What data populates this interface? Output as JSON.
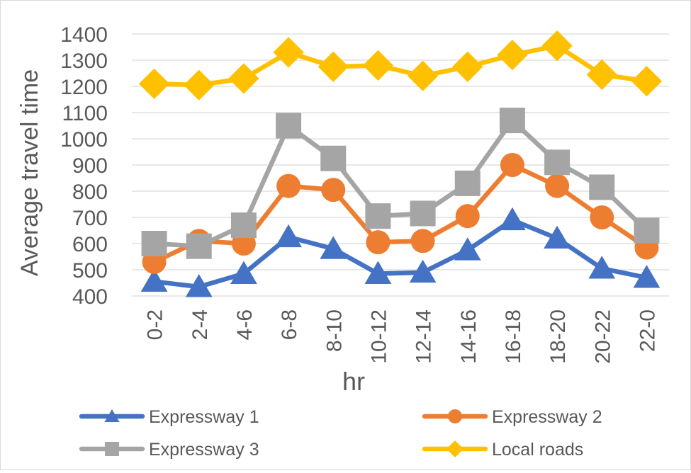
{
  "chart_data": {
    "type": "line",
    "title": "",
    "xlabel": "hr",
    "ylabel": "Average travel time",
    "ylim": [
      400,
      1400
    ],
    "yticks": [
      400,
      500,
      600,
      700,
      800,
      900,
      1000,
      1100,
      1200,
      1300,
      1400
    ],
    "grid": true,
    "legend_position": "bottom",
    "categories": [
      "0-2",
      "2-4",
      "4-6",
      "6-8",
      "8-10",
      "10-12",
      "12-14",
      "14-16",
      "16-18",
      "18-20",
      "20-22",
      "22-0"
    ],
    "series": [
      {
        "name": "Expressway 1",
        "color": "#4472C4",
        "marker": "triangle",
        "values": [
          455,
          435,
          485,
          625,
          580,
          485,
          490,
          575,
          690,
          620,
          505,
          470
        ]
      },
      {
        "name": "Expressway 2",
        "color": "#ED7D31",
        "marker": "circle",
        "values": [
          530,
          610,
          600,
          820,
          805,
          605,
          610,
          705,
          900,
          820,
          700,
          585
        ]
      },
      {
        "name": "Expressway 3",
        "color": "#A5A5A5",
        "marker": "square",
        "values": [
          600,
          590,
          670,
          1050,
          925,
          705,
          715,
          830,
          1070,
          910,
          815,
          650
        ]
      },
      {
        "name": "Local roads",
        "color": "#FFC000",
        "marker": "diamond",
        "values": [
          1210,
          1205,
          1230,
          1330,
          1275,
          1280,
          1240,
          1275,
          1320,
          1355,
          1245,
          1220
        ]
      }
    ]
  }
}
